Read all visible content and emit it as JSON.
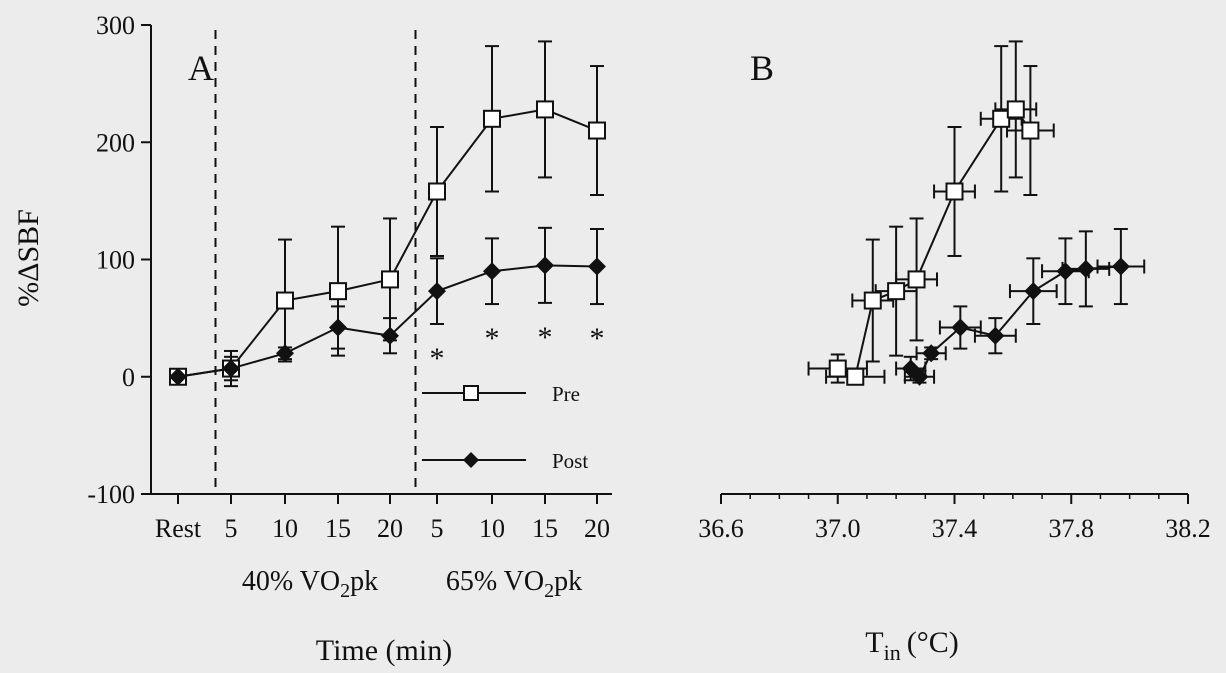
{
  "chart_data": [
    {
      "panel_label": "A",
      "type": "line",
      "xlabel": "Time (min)",
      "ylabel": "%ΔSBF",
      "ylim": [
        -100,
        300
      ],
      "yticks": [
        "300",
        "200",
        "100",
        "0",
        "-100"
      ],
      "categories": [
        "Rest",
        "5",
        "10",
        "15",
        "20",
        "5",
        "10",
        "15",
        "20"
      ],
      "phase_labels": [
        {
          "prefix": "40% VO",
          "sub": "2",
          "suffix": "pk"
        },
        {
          "prefix": "65% VO",
          "sub": "2",
          "suffix": "pk"
        }
      ],
      "significance_mark": "*",
      "significant_categories": [
        5,
        6,
        7,
        8
      ],
      "series": [
        {
          "name": "Pre",
          "marker": "open-square",
          "values": [
            0,
            7,
            65,
            73,
            83,
            158,
            220,
            228,
            210
          ],
          "err": [
            0,
            15,
            52,
            55,
            52,
            55,
            62,
            58,
            55
          ]
        },
        {
          "name": "Post",
          "marker": "filled-diamond",
          "values": [
            0,
            7,
            20,
            42,
            35,
            73,
            90,
            95,
            94
          ],
          "err": [
            0,
            10,
            5,
            18,
            15,
            28,
            28,
            32,
            32
          ]
        }
      ],
      "legend": [
        "Pre",
        "Post"
      ]
    },
    {
      "panel_label": "B",
      "type": "scatter",
      "xlabel_main": "T",
      "xlabel_sub": "in",
      "xlabel_unit": "(°C)",
      "xlim": [
        36.6,
        38.2
      ],
      "xticks": [
        "36.6",
        "37.0",
        "37.4",
        "37.8",
        "38.2"
      ],
      "ylim": [
        -100,
        300
      ],
      "series": [
        {
          "name": "Pre",
          "marker": "open-square",
          "points": [
            {
              "x": 37.0,
              "y": 7,
              "xerr": 0.1,
              "yerr": 12
            },
            {
              "x": 37.06,
              "y": 0,
              "xerr": 0.1,
              "yerr": 0
            },
            {
              "x": 37.12,
              "y": 65,
              "xerr": 0.07,
              "yerr": 52
            },
            {
              "x": 37.2,
              "y": 73,
              "xerr": 0.07,
              "yerr": 55
            },
            {
              "x": 37.27,
              "y": 83,
              "xerr": 0.07,
              "yerr": 52
            },
            {
              "x": 37.4,
              "y": 158,
              "xerr": 0.07,
              "yerr": 55
            },
            {
              "x": 37.56,
              "y": 220,
              "xerr": 0.07,
              "yerr": 62
            },
            {
              "x": 37.61,
              "y": 228,
              "xerr": 0.07,
              "yerr": 58
            },
            {
              "x": 37.66,
              "y": 210,
              "xerr": 0.08,
              "yerr": 55
            }
          ]
        },
        {
          "name": "Post",
          "marker": "filled-diamond",
          "points": [
            {
              "x": 37.25,
              "y": 7,
              "xerr": 0.05,
              "yerr": 10
            },
            {
              "x": 37.28,
              "y": 0,
              "xerr": 0.05,
              "yerr": 5
            },
            {
              "x": 37.32,
              "y": 20,
              "xerr": 0.05,
              "yerr": 5
            },
            {
              "x": 37.42,
              "y": 42,
              "xerr": 0.07,
              "yerr": 18
            },
            {
              "x": 37.54,
              "y": 35,
              "xerr": 0.07,
              "yerr": 15
            },
            {
              "x": 37.67,
              "y": 73,
              "xerr": 0.08,
              "yerr": 28
            },
            {
              "x": 37.78,
              "y": 90,
              "xerr": 0.08,
              "yerr": 28
            },
            {
              "x": 37.85,
              "y": 92,
              "xerr": 0.08,
              "yerr": 32
            },
            {
              "x": 37.97,
              "y": 94,
              "xerr": 0.08,
              "yerr": 32
            }
          ]
        }
      ]
    }
  ]
}
